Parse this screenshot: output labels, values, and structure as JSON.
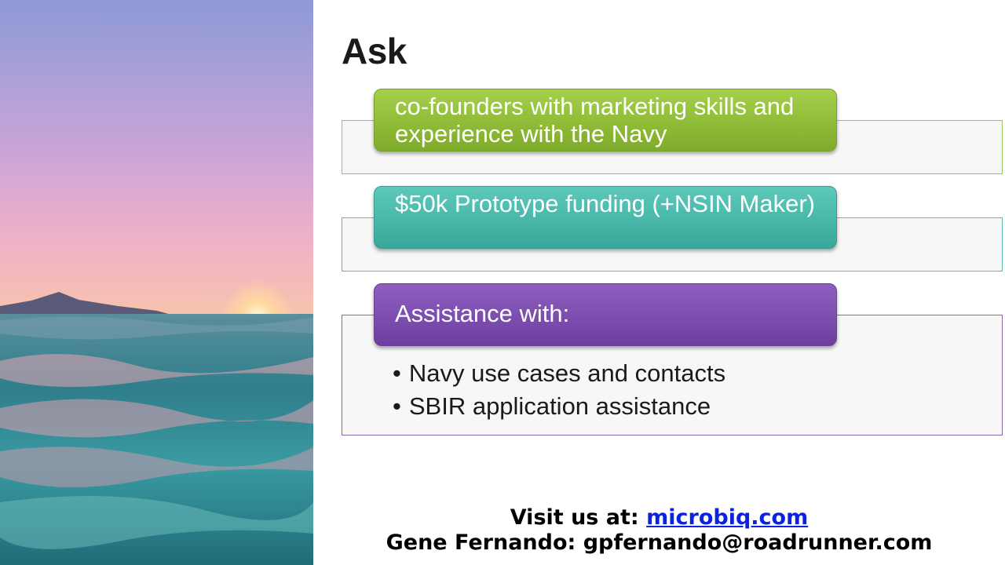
{
  "slide": {
    "title": "Ask",
    "items": [
      {
        "heading": "co-founders with marketing skills and experience with the Navy"
      },
      {
        "heading": "$50k Prototype funding (+NSIN Maker)"
      },
      {
        "heading": "Assistance with:",
        "bullets": [
          "Navy use cases and contacts",
          "SBIR application assistance"
        ]
      }
    ],
    "footer": {
      "visit_label": "Visit us at:",
      "visit_link": "microbiq.com",
      "contact_line": "Gene Fernando: gpfernando@roadrunner.com"
    }
  },
  "colors": {
    "green": "#8dbb3a",
    "teal": "#45b5a8",
    "purple": "#7b4cae",
    "link": "#0b22e0"
  }
}
